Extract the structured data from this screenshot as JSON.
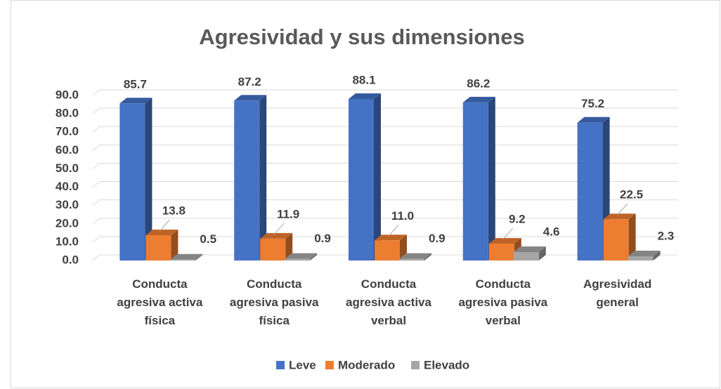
{
  "chart_data": {
    "type": "bar3d",
    "title": "Agresividad y sus dimensiones",
    "categories": [
      "Conducta agresiva activa física",
      "Conducta agresiva pasiva física",
      "Conducta agresiva activa verbal",
      "Conducta agresiva pasiva verbal",
      "Agresividad general"
    ],
    "series": [
      {
        "name": "Leve",
        "color": "#4472c4",
        "values": [
          85.7,
          87.2,
          88.1,
          86.2,
          75.2
        ],
        "value_labels": [
          "85.7",
          "87.2",
          "88.1",
          "86.2",
          "75.2"
        ]
      },
      {
        "name": "Moderado",
        "color": "#ed7d31",
        "values": [
          13.8,
          11.9,
          11.0,
          9.2,
          22.5
        ],
        "value_labels": [
          "13.8",
          "11.9",
          "11.0",
          "9.2",
          "22.5"
        ]
      },
      {
        "name": "Elevado",
        "color": "#a5a5a5",
        "values": [
          0.5,
          0.9,
          0.9,
          4.6,
          2.3
        ],
        "value_labels": [
          "0.5",
          "0.9",
          "0.9",
          "4.6",
          "2.3"
        ]
      }
    ],
    "ylim": [
      0,
      90
    ],
    "yticks": [
      {
        "value": 0,
        "label": "0.0"
      },
      {
        "value": 10,
        "label": "10.0"
      },
      {
        "value": 20,
        "label": "20.0"
      },
      {
        "value": 30,
        "label": "30.0"
      },
      {
        "value": 40,
        "label": "40.0"
      },
      {
        "value": 50,
        "label": "50.0"
      },
      {
        "value": 60,
        "label": "60.0"
      },
      {
        "value": 70,
        "label": "70.0"
      },
      {
        "value": 80,
        "label": "80.0"
      },
      {
        "value": 90,
        "label": "90.0"
      }
    ],
    "grid": true,
    "legend": "bottom"
  }
}
